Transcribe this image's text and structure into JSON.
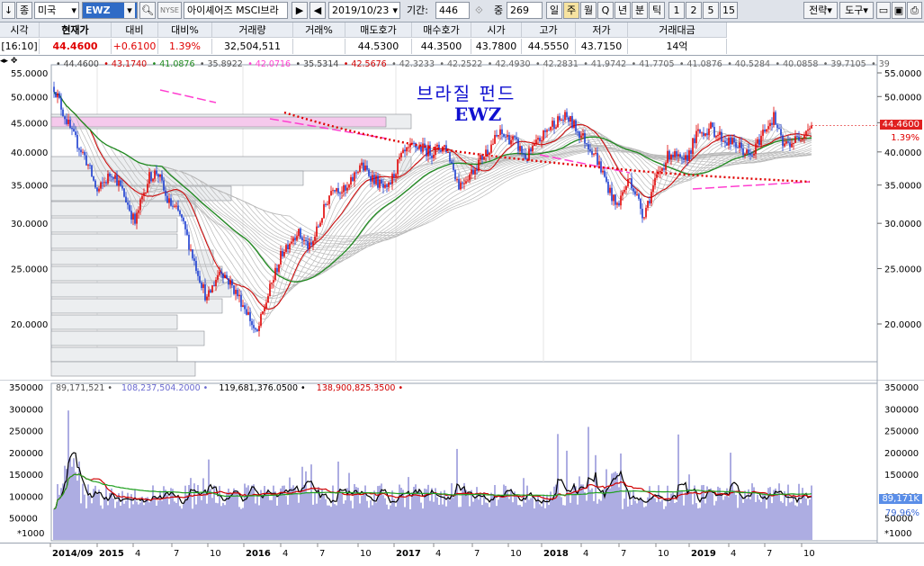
{
  "toolbar": {
    "btn_down": "↓",
    "btn_jong": "종",
    "market": "미국",
    "symbol": "EWZ",
    "nyse_label": "NYSE",
    "name": "아이셰어즈 MSCI브라",
    "date": "2019/10/23",
    "period_label": "기간:",
    "period_value": "446",
    "overlap_label": "중",
    "overlap_value": "269",
    "timeframes": [
      "일",
      "주",
      "월",
      "Q",
      "년",
      "분",
      "틱"
    ],
    "selected_timeframe": "주",
    "numbers": [
      "1",
      "2",
      "5",
      "15"
    ],
    "strategy_label": "전략",
    "tools_label": "도구"
  },
  "quote": {
    "headers": [
      "시각",
      "현재가",
      "대비",
      "대비%",
      "거래량",
      "거래%",
      "매도호가",
      "매수호가",
      "시가",
      "고가",
      "저가",
      "거래대금"
    ],
    "values": [
      "[16:10]",
      "44.4600",
      "+0.6100",
      "1.39%",
      "32,504,511",
      "",
      "44.5300",
      "44.3500",
      "43.7800",
      "44.5550",
      "43.7150",
      "14억"
    ]
  },
  "price_chart": {
    "ma_legend": [
      "44.4600",
      "43.1740",
      "41.0876",
      "35.8922",
      "42.0716",
      "35.5314",
      "42.5676",
      "42.3233",
      "42.2522",
      "42.4930",
      "42.2831",
      "41.9742",
      "41.7705",
      "41.0876",
      "40.5284",
      "40.0858",
      "39.7105",
      "39"
    ],
    "title_line1": "브라질 펀드",
    "title_line2": "EWZ",
    "y_ticks": [
      "55.0000",
      "50.0000",
      "45.0000",
      "40.0000",
      "35.0000",
      "30.0000",
      "25.0000",
      "20.0000"
    ],
    "current_price": "44.4600",
    "current_pct": "1.39%"
  },
  "volume_chart": {
    "legend": [
      "89,171,521",
      "108,237,504.2000",
      "119,681,376.0500",
      "138,900,825.3500"
    ],
    "y_ticks": [
      "350000",
      "300000",
      "250000",
      "200000",
      "150000",
      "100000",
      "50000"
    ],
    "unit": "*1000",
    "current_volume": "89,171K",
    "current_pct": "79.96%"
  },
  "x_axis": {
    "labels": [
      "2014/09",
      "2015",
      "4",
      "7",
      "10",
      "2016",
      "4",
      "7",
      "10",
      "2017",
      "4",
      "7",
      "10",
      "2018",
      "4",
      "7",
      "10",
      "2019",
      "4",
      "7",
      "10"
    ]
  },
  "colors": {
    "up": "#e00000",
    "down": "#1a3cd0",
    "ma_red": "#d00000",
    "ma_green": "#1f8a1f",
    "ma_pink": "#ff3fd0",
    "dotted_red": "#e00000",
    "volume_bar": "#8a8ad6"
  }
}
